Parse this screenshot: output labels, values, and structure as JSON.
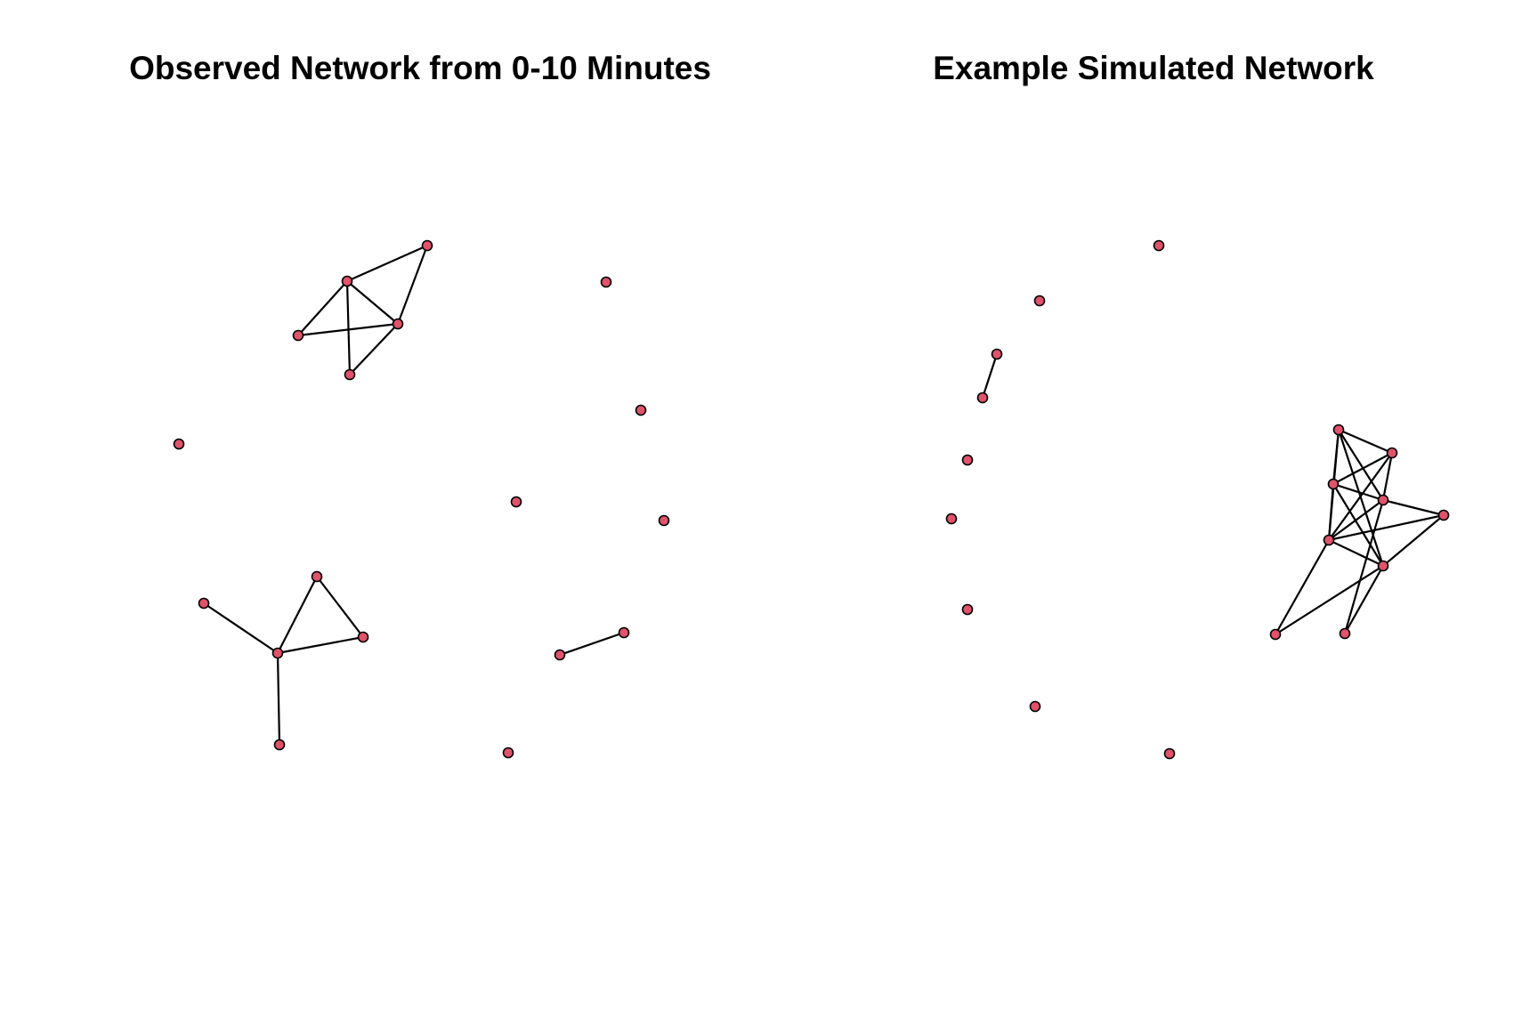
{
  "colors": {
    "node": "#DF536B",
    "edge": "#000000",
    "background": "#FFFFFF"
  },
  "panels": [
    {
      "title": "Observed Network from 0-10 Minutes",
      "nodes": [
        {
          "id": "a1"
        },
        {
          "id": "a2"
        },
        {
          "id": "a3"
        },
        {
          "id": "a4"
        },
        {
          "id": "a5"
        },
        {
          "id": "a6"
        },
        {
          "id": "a7"
        },
        {
          "id": "a8"
        },
        {
          "id": "a9"
        },
        {
          "id": "a10"
        },
        {
          "id": "a11"
        },
        {
          "id": "a12"
        },
        {
          "id": "a13"
        },
        {
          "id": "a14"
        },
        {
          "id": "a15"
        },
        {
          "id": "a16"
        },
        {
          "id": "a17"
        },
        {
          "id": "a18"
        }
      ],
      "edges": [
        [
          "a1",
          "a2"
        ],
        [
          "a2",
          "a3"
        ],
        [
          "a2",
          "a4"
        ],
        [
          "a2",
          "a5"
        ],
        [
          "a3",
          "a4"
        ],
        [
          "a1",
          "a4"
        ],
        [
          "a4",
          "a5"
        ],
        [
          "a6",
          "a7"
        ],
        [
          "a7",
          "a8"
        ],
        [
          "a8",
          "a9"
        ],
        [
          "a7",
          "a9"
        ],
        [
          "a7",
          "a10"
        ],
        [
          "a11",
          "a12"
        ]
      ]
    },
    {
      "title": "Example Simulated Network",
      "nodes": [
        {
          "id": "b1"
        },
        {
          "id": "b2"
        },
        {
          "id": "b3"
        },
        {
          "id": "b4"
        },
        {
          "id": "b5"
        },
        {
          "id": "b6"
        },
        {
          "id": "b7"
        },
        {
          "id": "b8"
        },
        {
          "id": "b9"
        },
        {
          "id": "b10"
        },
        {
          "id": "b11"
        },
        {
          "id": "b12"
        },
        {
          "id": "b13"
        },
        {
          "id": "b14"
        },
        {
          "id": "b15"
        },
        {
          "id": "b16"
        },
        {
          "id": "b17"
        },
        {
          "id": "b18"
        }
      ],
      "edges": [
        [
          "b3",
          "b4"
        ],
        [
          "b9",
          "b10"
        ],
        [
          "b9",
          "b11"
        ],
        [
          "b9",
          "b13"
        ],
        [
          "b9",
          "b14"
        ],
        [
          "b9",
          "b12"
        ],
        [
          "b10",
          "b11"
        ],
        [
          "b10",
          "b12"
        ],
        [
          "b10",
          "b13"
        ],
        [
          "b11",
          "b12"
        ],
        [
          "b11",
          "b13"
        ],
        [
          "b11",
          "b14"
        ],
        [
          "b12",
          "b13"
        ],
        [
          "b12",
          "b15"
        ],
        [
          "b12",
          "b16"
        ],
        [
          "b13",
          "b14"
        ],
        [
          "b13",
          "b15"
        ],
        [
          "b13",
          "b17"
        ],
        [
          "b14",
          "b15"
        ],
        [
          "b14",
          "b16"
        ],
        [
          "b14",
          "b17"
        ]
      ]
    }
  ]
}
